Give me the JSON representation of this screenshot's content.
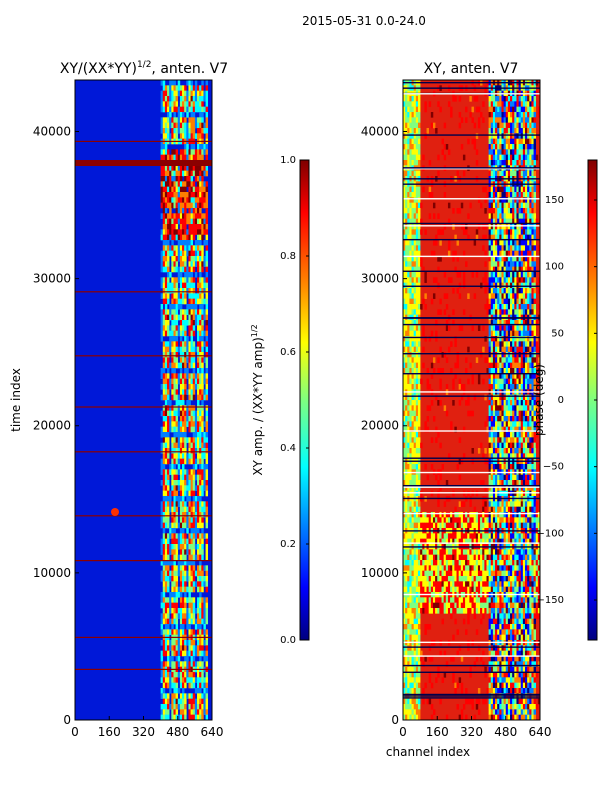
{
  "figure": {
    "suptitle": "2015-05-31 0.0-24.0",
    "x_axis_label": "channel index"
  },
  "colormap": [
    "#00007f",
    "#0000ff",
    "#007fff",
    "#00ffff",
    "#7fff7f",
    "#ffff00",
    "#ff7f00",
    "#ff0000",
    "#7f0000"
  ],
  "chart_data": [
    {
      "type": "heatmap",
      "title_main": "XY/(XX*YY)",
      "title_sup": "1/2",
      "title_tail": ", anten. V7",
      "ylabel": "time index",
      "xlim": [
        0,
        640
      ],
      "ylim": [
        0,
        43500
      ],
      "xticks": [
        0,
        160,
        320,
        480,
        640
      ],
      "yticks": [
        0,
        10000,
        20000,
        30000,
        40000
      ],
      "colorbar": {
        "label_main": "XY amp. / (XX*YY amp)",
        "label_sup": "1/2",
        "range": [
          0.0,
          1.0
        ],
        "ticks": [
          "0.0",
          "0.2",
          "0.4",
          "0.6",
          "0.8",
          "1.0"
        ]
      }
    },
    {
      "type": "heatmap",
      "title": "XY, anten. V7",
      "xlabel": "channel index",
      "xlim": [
        0,
        640
      ],
      "ylim": [
        0,
        43500
      ],
      "xticks": [
        0,
        160,
        320,
        480,
        640
      ],
      "yticks": [
        0,
        10000,
        20000,
        30000,
        40000
      ],
      "colorbar": {
        "label": "phase (deg)",
        "range": [
          -180,
          180
        ],
        "ticks": [
          "−150",
          "−100",
          "−50",
          "0",
          "50",
          "100",
          "150"
        ]
      }
    }
  ]
}
